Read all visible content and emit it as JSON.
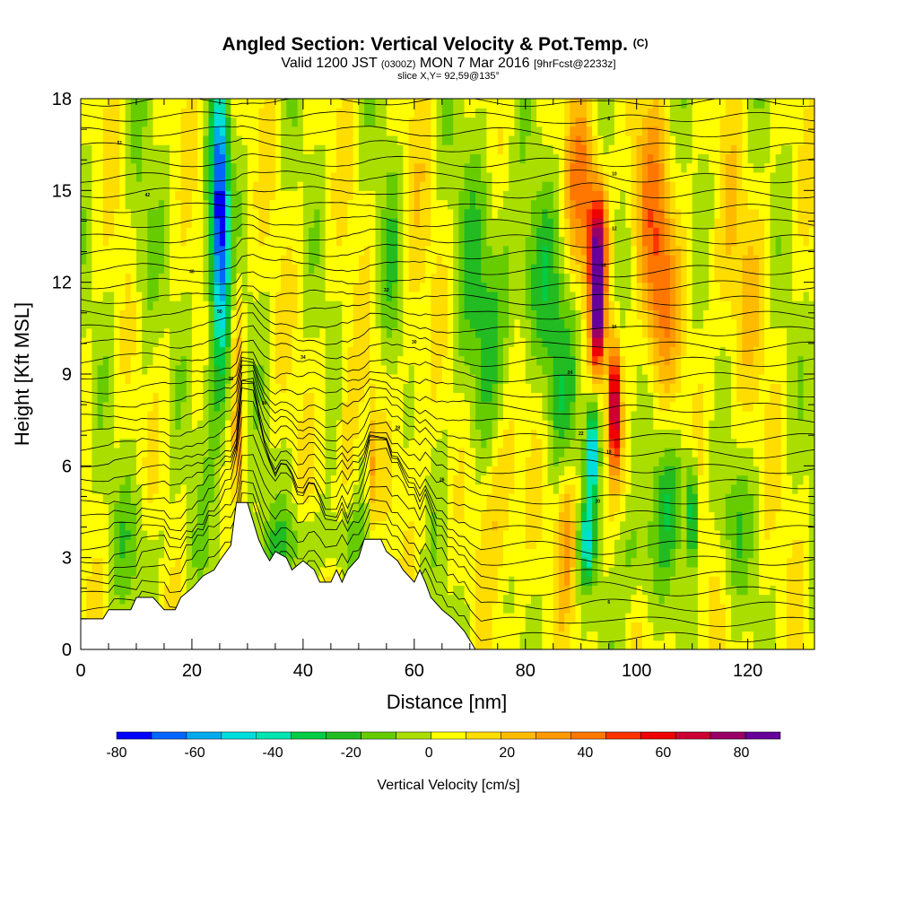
{
  "chart_data": {
    "type": "heatmap",
    "title": {
      "main": "Angled Section: Vertical Velocity & Pot.Temp.",
      "main_tag": "(C)",
      "sub_pre": "Valid 1200 JST",
      "sub_tag": "(0300Z)",
      "sub_mid": "MON 7 Mar 2016",
      "sub_post": "[9hrFcst@2233z]",
      "subsub": "slice X,Y= 92,59@135°"
    },
    "xlabel": "Distance [nm]",
    "ylabel": "Height [Kft MSL]",
    "xlim": [
      0,
      132
    ],
    "ylim": [
      0,
      18
    ],
    "x_ticks": [
      0,
      20,
      40,
      60,
      80,
      100,
      120
    ],
    "y_ticks": [
      0,
      3,
      6,
      9,
      12,
      15,
      18
    ],
    "colorbar": {
      "label": "Vertical Velocity [cm/s]",
      "bounds": [
        -80,
        90
      ],
      "tick_labels": [
        "-80",
        "-60",
        "-40",
        "-20",
        "0",
        "20",
        "40",
        "60",
        "80"
      ],
      "tick_values": [
        -80,
        -60,
        -40,
        -20,
        0,
        20,
        40,
        60,
        80
      ],
      "colors": [
        "#0000ff",
        "#0066ff",
        "#00aaee",
        "#00dddd",
        "#00e4b0",
        "#00cc44",
        "#22bb22",
        "#66cc00",
        "#aade00",
        "#ffff00",
        "#ffdd00",
        "#ffbb00",
        "#ff9900",
        "#ff7700",
        "#ff3300",
        "#ee0000",
        "#cc0033",
        "#990066",
        "#660099"
      ]
    },
    "terrain": [
      [
        0,
        1
      ],
      [
        4,
        1
      ],
      [
        5,
        1.3
      ],
      [
        9,
        1.3
      ],
      [
        10,
        1.7
      ],
      [
        13,
        1.7
      ],
      [
        15,
        1.3
      ],
      [
        17,
        1.3
      ],
      [
        18,
        1.7
      ],
      [
        20,
        2
      ],
      [
        22,
        2.4
      ],
      [
        24,
        2.6
      ],
      [
        25,
        2.9
      ],
      [
        27,
        3.4
      ],
      [
        28,
        4.8
      ],
      [
        30,
        4.8
      ],
      [
        31,
        4.2
      ],
      [
        32,
        3.6
      ],
      [
        33,
        3.2
      ],
      [
        34,
        2.9
      ],
      [
        35,
        3.2
      ],
      [
        37,
        3
      ],
      [
        38,
        2.6
      ],
      [
        40,
        2.9
      ],
      [
        42,
        2.6
      ],
      [
        43,
        2.2
      ],
      [
        45,
        2.2
      ],
      [
        46,
        2.6
      ],
      [
        47,
        2.2
      ],
      [
        48,
        2.6
      ],
      [
        50,
        3
      ],
      [
        51,
        3.6
      ],
      [
        54,
        3.6
      ],
      [
        55,
        3.2
      ],
      [
        57,
        2.9
      ],
      [
        58,
        2.6
      ],
      [
        60,
        2.2
      ],
      [
        61,
        2.6
      ],
      [
        62,
        2.2
      ],
      [
        63,
        1.7
      ],
      [
        65,
        1.3
      ],
      [
        67,
        1
      ],
      [
        69,
        0.6
      ],
      [
        70,
        0.3
      ],
      [
        71,
        0
      ]
    ],
    "isentrope_labels": [
      "51",
      "50",
      "42",
      "40",
      "38",
      "36",
      "34",
      "32",
      "30",
      "28",
      "26",
      "24",
      "22",
      "20",
      "18",
      "16",
      "14",
      "12",
      "10",
      "8",
      "6"
    ],
    "features": [
      {
        "x": 25,
        "y": 14.5,
        "w": -70,
        "sx": 1.5,
        "sy": 4
      },
      {
        "x": 25,
        "y": 10.5,
        "w": -25,
        "sx": 3,
        "sy": 5
      },
      {
        "x": 28,
        "y": 10,
        "w": 28,
        "sx": 1.2,
        "sy": 3
      },
      {
        "x": 28.5,
        "y": 6.5,
        "w": 22,
        "sx": 0.8,
        "sy": 1.5
      },
      {
        "x": 11,
        "y": 13,
        "w": -12,
        "sx": 2,
        "sy": 4
      },
      {
        "x": 48,
        "y": 7,
        "w": 14,
        "sx": 2,
        "sy": 3
      },
      {
        "x": 52.5,
        "y": 6,
        "w": 22,
        "sx": 0.8,
        "sy": 2
      },
      {
        "x": 56,
        "y": 12,
        "w": -14,
        "sx": 2,
        "sy": 4
      },
      {
        "x": 60,
        "y": 10,
        "w": 10,
        "sx": 3,
        "sy": 6
      },
      {
        "x": 72,
        "y": 11,
        "w": -18,
        "sx": 5,
        "sy": 6
      },
      {
        "x": 82,
        "y": 12,
        "w": -20,
        "sx": 6,
        "sy": 3
      },
      {
        "x": 86,
        "y": 8,
        "w": -20,
        "sx": 3,
        "sy": 3
      },
      {
        "x": 76,
        "y": 5,
        "w": 22,
        "sx": 4,
        "sy": 3
      },
      {
        "x": 87.5,
        "y": 4,
        "w": 25,
        "sx": 1.8,
        "sy": 2.5
      },
      {
        "x": 93,
        "y": 13,
        "w": 72,
        "sx": 1.6,
        "sy": 2
      },
      {
        "x": 93,
        "y": 10.5,
        "w": 60,
        "sx": 1.2,
        "sy": 1.5
      },
      {
        "x": 90,
        "y": 15,
        "w": 32,
        "sx": 3,
        "sy": 3
      },
      {
        "x": 96,
        "y": 8,
        "w": 75,
        "sx": 1,
        "sy": 2
      },
      {
        "x": 92,
        "y": 6.5,
        "w": -60,
        "sx": 1.1,
        "sy": 1.6
      },
      {
        "x": 91,
        "y": 3.5,
        "w": -40,
        "sx": 1.5,
        "sy": 1.2
      },
      {
        "x": 104,
        "y": 11.5,
        "w": 35,
        "sx": 3,
        "sy": 3
      },
      {
        "x": 102,
        "y": 15,
        "w": 22,
        "sx": 4,
        "sy": 3
      },
      {
        "x": 110,
        "y": 4.5,
        "w": -45,
        "sx": 1,
        "sy": 1.8
      },
      {
        "x": 106,
        "y": 5,
        "w": -20,
        "sx": 3,
        "sy": 2
      },
      {
        "x": 117,
        "y": 4,
        "w": -15,
        "sx": 3,
        "sy": 2
      },
      {
        "x": 100,
        "y": 3,
        "w": -18,
        "sx": 4,
        "sy": 2
      },
      {
        "x": 40,
        "y": 3.5,
        "w": -15,
        "sx": 12,
        "sy": 1.2
      },
      {
        "x": 10,
        "y": 3.5,
        "w": -10,
        "sx": 6,
        "sy": 2
      },
      {
        "x": 118,
        "y": 12,
        "w": 12,
        "sx": 5,
        "sy": 4
      }
    ]
  }
}
